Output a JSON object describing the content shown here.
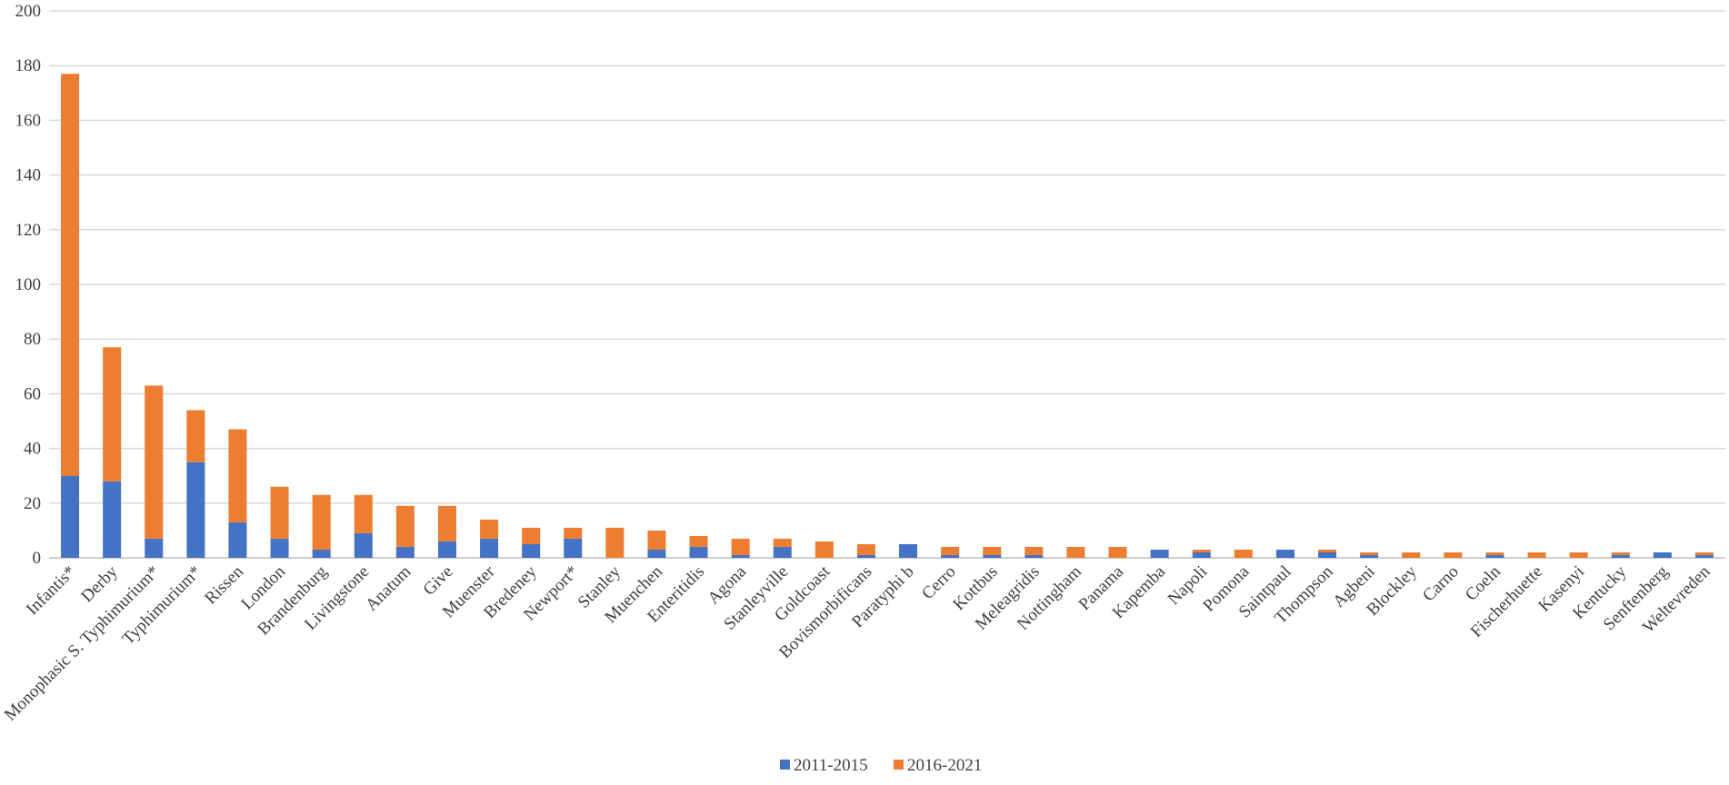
{
  "chart_data": {
    "type": "bar",
    "stacked": true,
    "title": "",
    "xlabel": "",
    "ylabel": "",
    "ylim": [
      0,
      200
    ],
    "yticks": [
      0,
      20,
      40,
      60,
      80,
      100,
      120,
      140,
      160,
      180,
      200
    ],
    "grid": true,
    "legend_position": "bottom",
    "categories": [
      "Infantis*",
      "Derby",
      "Monophasic S. Typhimurium*",
      "Typhimurium*",
      "Rissen",
      "London",
      "Brandenburg",
      "Livingstone",
      "Anatum",
      "Give",
      "Muenster",
      "Bredeney",
      "Newport*",
      "Stanley",
      "Muenchen",
      "Enteritidis",
      "Agona",
      "Stanleyville",
      "Goldcoast",
      "Bovismorbificans",
      "Paratyphi b",
      "Cerro",
      "Kottbus",
      "Meleagridis",
      "Nottingham",
      "Panama",
      "Kapemba",
      "Napoli",
      "Pomona",
      "Saintpaul",
      "Thompson",
      "Agbeni",
      "Blockley",
      "Carno",
      "Coeln",
      "Fischerhuette",
      "Kasenyi",
      "Kentucky",
      "Senftenberg",
      "Weltevreden"
    ],
    "series": [
      {
        "name": "2011-2015",
        "color": "#4472c4",
        "values": [
          30,
          28,
          7,
          35,
          13,
          7,
          3,
          9,
          4,
          6,
          7,
          5,
          7,
          0,
          3,
          4,
          1,
          4,
          0,
          1,
          5,
          1,
          1,
          1,
          0,
          0,
          3,
          2,
          0,
          3,
          2,
          1,
          0,
          0,
          1,
          0,
          0,
          1,
          2,
          1
        ]
      },
      {
        "name": "2016-2021",
        "color": "#ed7d31",
        "values": [
          147,
          49,
          56,
          19,
          34,
          19,
          20,
          14,
          15,
          13,
          7,
          6,
          4,
          11,
          7,
          4,
          6,
          3,
          6,
          4,
          0,
          3,
          3,
          3,
          4,
          4,
          0,
          1,
          3,
          0,
          1,
          1,
          2,
          2,
          1,
          2,
          2,
          1,
          0,
          1
        ]
      }
    ]
  }
}
